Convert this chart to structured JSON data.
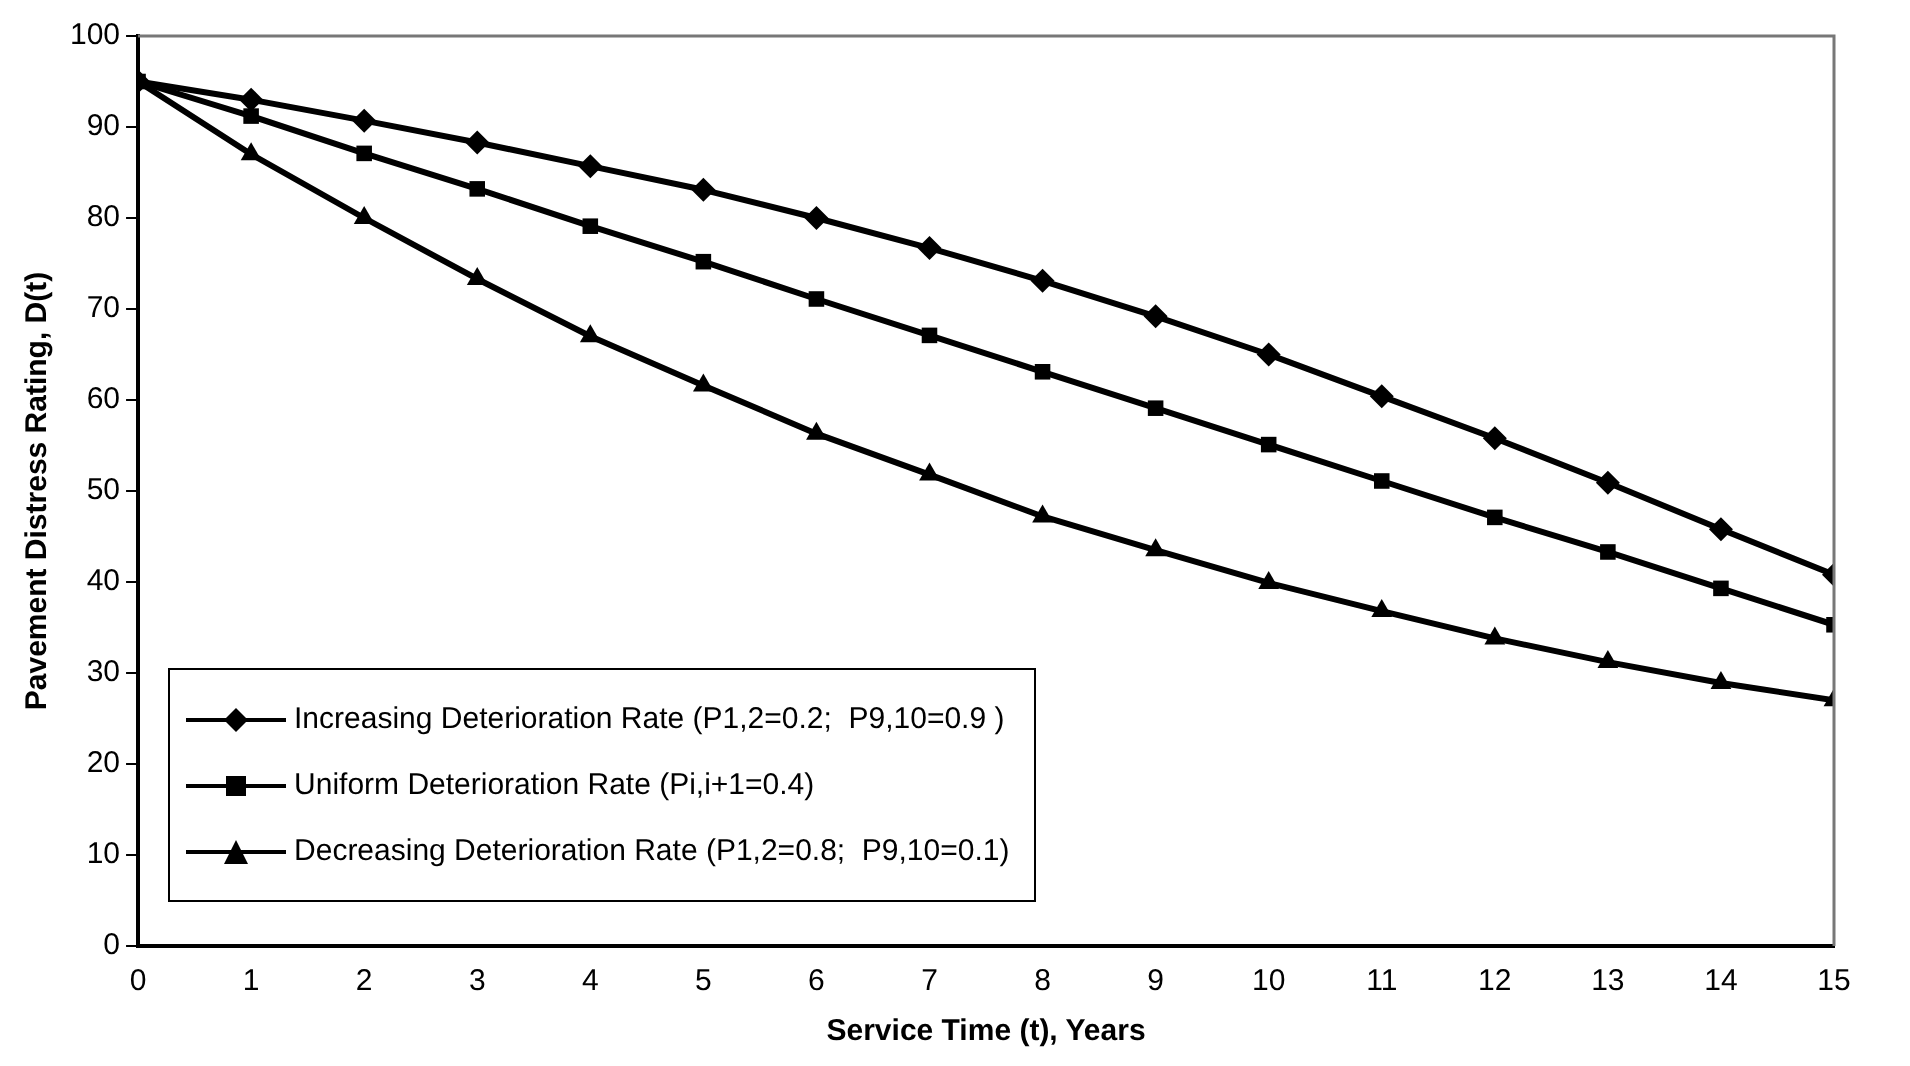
{
  "chart_data": {
    "type": "line",
    "xlabel": "Service Time (t), Years",
    "ylabel": "Pavement Distress Rating, D(t)",
    "x": [
      0,
      1,
      2,
      3,
      4,
      5,
      6,
      7,
      8,
      9,
      10,
      11,
      12,
      13,
      14,
      15
    ],
    "xlim": [
      0,
      15
    ],
    "xticks": [
      0,
      1,
      2,
      3,
      4,
      5,
      6,
      7,
      8,
      9,
      10,
      11,
      12,
      13,
      14,
      15
    ],
    "ylim": [
      0,
      100
    ],
    "yticks": [
      0,
      10,
      20,
      30,
      40,
      50,
      60,
      70,
      80,
      90,
      100
    ],
    "grid": false,
    "legend": "bottom left",
    "line_style": "solid",
    "series": [
      {
        "name": "Increasing Deterioration Rate (P1,2=0.2;  P9,10=0.9 )",
        "color": "#000000",
        "marker": "diamond",
        "values": [
          95,
          93,
          90.7,
          88.3,
          85.7,
          83.1,
          80,
          76.7,
          73.1,
          69.2,
          65,
          60.4,
          55.8,
          50.9,
          45.8,
          40.8
        ]
      },
      {
        "name": "Uniform Deterioration Rate (Pi,i+1=0.4)",
        "color": "#000000",
        "marker": "square",
        "values": [
          95,
          91.2,
          87.1,
          83.2,
          79.1,
          75.2,
          71.1,
          67.1,
          63.1,
          59.1,
          55.1,
          51.1,
          47.1,
          43.3,
          39.3,
          35.3
        ]
      },
      {
        "name": "Decreasing Deterioration Rate (P1,2=0.8;  P9,10=0.1)",
        "color": "#000000",
        "marker": "triangle",
        "values": [
          95,
          87,
          80,
          73.3,
          67,
          61.6,
          56.3,
          51.8,
          47.2,
          43.5,
          39.9,
          36.8,
          33.8,
          31.2,
          28.9,
          27
        ]
      }
    ]
  }
}
